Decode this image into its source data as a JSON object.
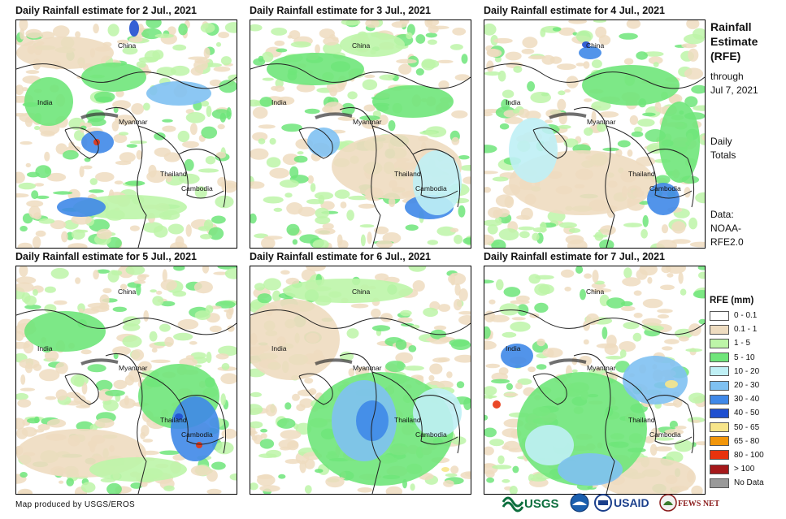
{
  "panels": [
    {
      "title": "Daily Rainfall estimate for 2 Jul., 2021"
    },
    {
      "title": "Daily Rainfall estimate for 3 Jul., 2021"
    },
    {
      "title": "Daily Rainfall estimate for 4 Jul., 2021"
    },
    {
      "title": "Daily Rainfall estimate for 5 Jul., 2021"
    },
    {
      "title": "Daily Rainfall estimate for 6 Jul., 2021"
    },
    {
      "title": "Daily Rainfall estimate for 7 Jul., 2021"
    }
  ],
  "places": {
    "china": "China",
    "india": "India",
    "myanmar": "Myanmar",
    "thailand": "Thailand",
    "cambodia": "Cambodia"
  },
  "side": {
    "title_line1": "Rainfall",
    "title_line2": "Estimate",
    "title_line3": "(RFE)",
    "through_line1": "through",
    "through_line2": "Jul 7, 2021",
    "daily_line1": "Daily",
    "daily_line2": "Totals",
    "data_line1": "Data:",
    "data_line2": "NOAA-",
    "data_line3": "RFE2.0"
  },
  "legend": {
    "title": "RFE (mm)",
    "items": [
      {
        "label": "0 - 0.1",
        "color": "#ffffff"
      },
      {
        "label": "0.1 - 1",
        "color": "#eedcc0"
      },
      {
        "label": "1 - 5",
        "color": "#bdf5a8"
      },
      {
        "label": "5 - 10",
        "color": "#6fe57a"
      },
      {
        "label": "10 - 20",
        "color": "#bff0f5"
      },
      {
        "label": "20 - 30",
        "color": "#7fc1f2"
      },
      {
        "label": "30 - 40",
        "color": "#3f88e8"
      },
      {
        "label": "40 - 50",
        "color": "#1f4fd0"
      },
      {
        "label": "50 - 65",
        "color": "#f7e58a"
      },
      {
        "label": "65 - 80",
        "color": "#f2960a"
      },
      {
        "label": "80 - 100",
        "color": "#e8330e"
      },
      {
        "label": "> 100",
        "color": "#a5181a"
      },
      {
        "label": "No Data",
        "color": "#999999"
      }
    ]
  },
  "footer": {
    "credit": "Map produced by USGS/EROS",
    "usgs": "USGS",
    "usaid": "USAID",
    "fewsnet": "FEWS NET"
  }
}
